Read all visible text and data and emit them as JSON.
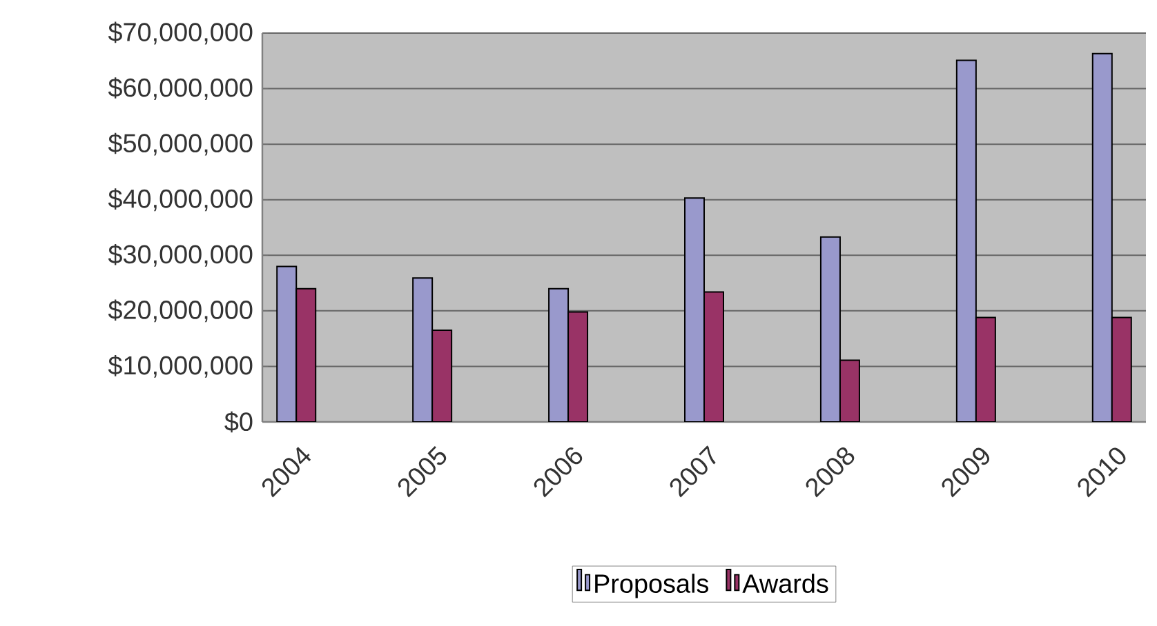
{
  "chart_data": {
    "type": "bar",
    "categories": [
      "2004",
      "2005",
      "2006",
      "2007",
      "2008",
      "2009",
      "2010"
    ],
    "series": [
      {
        "name": "Proposals",
        "color": "#9999cc",
        "values": [
          28000000,
          25900000,
          24000000,
          40300000,
          33300000,
          65100000,
          66300000
        ]
      },
      {
        "name": "Awards",
        "color": "#993366",
        "values": [
          24000000,
          16500000,
          19800000,
          23400000,
          11100000,
          18800000,
          18800000
        ]
      }
    ],
    "ylim": [
      0,
      70000000
    ],
    "yticks": [
      {
        "value": 0,
        "label": "$0"
      },
      {
        "value": 10000000,
        "label": "$10,000,000"
      },
      {
        "value": 20000000,
        "label": "$20,000,000"
      },
      {
        "value": 30000000,
        "label": "$30,000,000"
      },
      {
        "value": 40000000,
        "label": "$40,000,000"
      },
      {
        "value": 50000000,
        "label": "$50,000,000"
      },
      {
        "value": 60000000,
        "label": "$60,000,000"
      },
      {
        "value": 70000000,
        "label": "$70,000,000"
      }
    ],
    "grid": "y",
    "legend": "bottom"
  }
}
